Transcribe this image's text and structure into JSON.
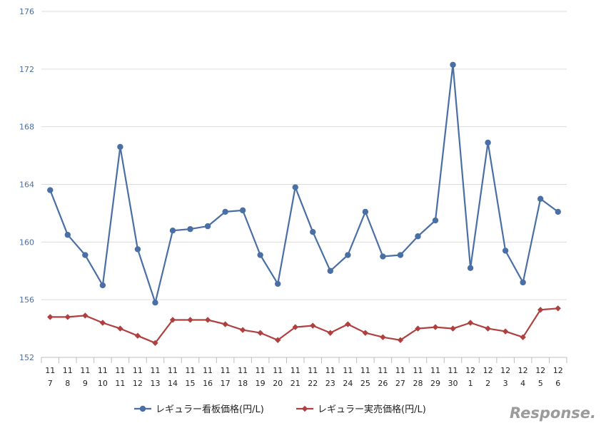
{
  "chart_data": {
    "type": "line",
    "x_month": [
      "11",
      "11",
      "11",
      "11",
      "11",
      "11",
      "11",
      "11",
      "11",
      "11",
      "11",
      "11",
      "11",
      "11",
      "11",
      "11",
      "11",
      "11",
      "11",
      "11",
      "11",
      "11",
      "11",
      "11",
      "12",
      "12",
      "12",
      "12",
      "12",
      "12"
    ],
    "x_day": [
      "7",
      "8",
      "9",
      "10",
      "11",
      "12",
      "13",
      "14",
      "15",
      "16",
      "17",
      "18",
      "19",
      "20",
      "21",
      "22",
      "23",
      "24",
      "25",
      "26",
      "27",
      "28",
      "29",
      "30",
      "1",
      "2",
      "3",
      "4",
      "5",
      "6"
    ],
    "ylim": [
      152,
      176
    ],
    "yticks": [
      "152",
      "156",
      "160",
      "164",
      "168",
      "172",
      "176"
    ],
    "grid": true,
    "legend_position": "bottom",
    "series": [
      {
        "name": "レギュラー看板価格(円/L)",
        "color": "#4a6fa5",
        "marker": "circle",
        "values": [
          163.6,
          160.5,
          159.1,
          157.0,
          166.6,
          159.5,
          155.8,
          160.8,
          160.9,
          161.1,
          162.1,
          162.2,
          159.1,
          157.1,
          163.8,
          160.7,
          158.0,
          159.1,
          162.1,
          159.0,
          159.1,
          160.4,
          161.5,
          172.3,
          158.2,
          166.9,
          159.4,
          157.2,
          163.0,
          162.1
        ]
      },
      {
        "name": "レギュラー実売価格(円/L)",
        "color": "#b04040",
        "marker": "diamond",
        "values": [
          154.8,
          154.8,
          154.9,
          154.4,
          154.0,
          153.5,
          153.0,
          154.6,
          154.6,
          154.6,
          154.3,
          153.9,
          153.7,
          153.2,
          154.1,
          154.2,
          153.7,
          154.3,
          153.7,
          153.4,
          153.2,
          154.0,
          154.1,
          154.0,
          154.4,
          154.0,
          153.8,
          153.4,
          155.3,
          155.4
        ]
      }
    ]
  },
  "watermark": "Response."
}
